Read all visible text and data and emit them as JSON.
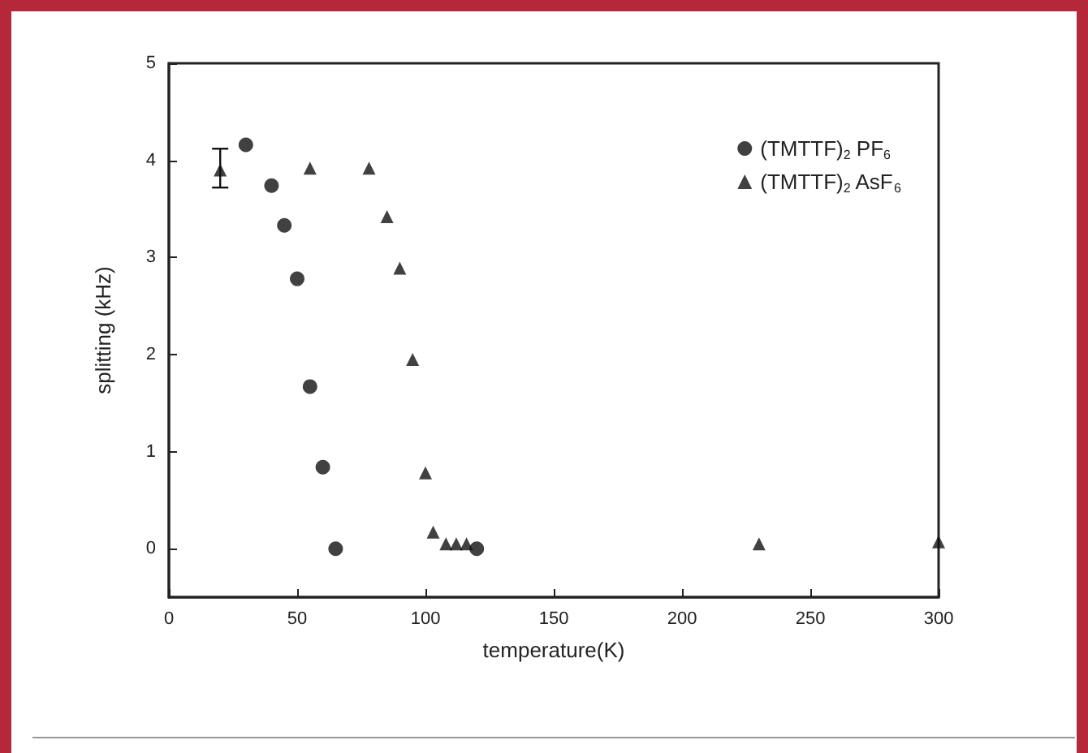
{
  "chart_data": {
    "type": "scatter",
    "xlabel": "temperature(K)",
    "ylabel": "splitting (kHz)",
    "xlim": [
      0,
      300
    ],
    "xticks": [
      0,
      50,
      100,
      150,
      200,
      250,
      300
    ],
    "ylim": [
      -0.5,
      5
    ],
    "yticks": [
      0,
      1,
      2,
      3,
      4,
      5
    ],
    "grid": false,
    "legend": "top right",
    "series": [
      {
        "name": "(TMTTF)$_{2}$ PF$_{6}$",
        "color": "#111111",
        "marker": "circle",
        "x": [
          30,
          40,
          45,
          50,
          55,
          60,
          65,
          120
        ],
        "values": [
          4.16,
          3.74,
          3.33,
          2.78,
          1.67,
          0.84,
          0,
          0
        ]
      },
      {
        "name": "(TMTTF)$_{2}$ AsF$_{6}$",
        "color": "#111111",
        "marker": "triangle",
        "x": [
          20,
          55,
          78,
          85,
          90,
          95,
          100,
          103,
          108,
          112,
          116,
          230,
          300
        ],
        "values": [
          3.9,
          3.92,
          3.92,
          3.42,
          2.89,
          1.95,
          0.78,
          0.17,
          0.05,
          0.05,
          0.05,
          0.05,
          0.07
        ],
        "errors": [
          [
            3.72,
            4.12
          ],
          null,
          null,
          null,
          null,
          null,
          null,
          null,
          null,
          null,
          null,
          null,
          null
        ]
      }
    ]
  }
}
